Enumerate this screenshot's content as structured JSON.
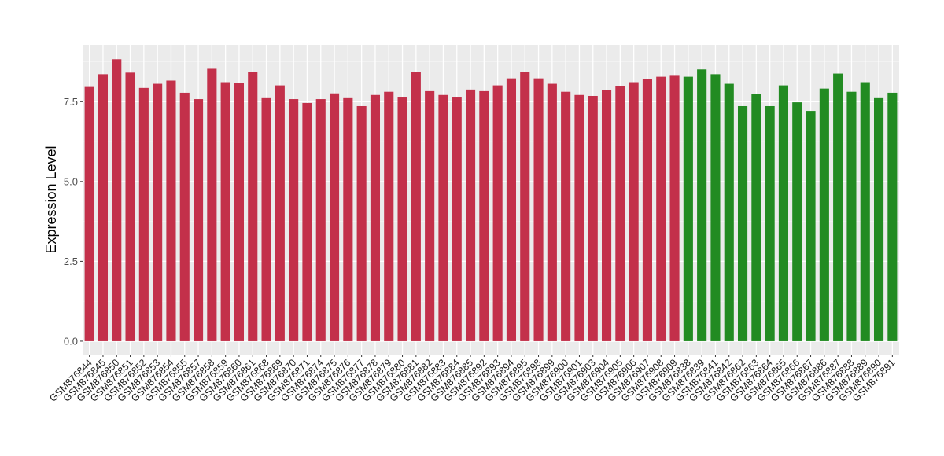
{
  "chart_data": {
    "type": "bar",
    "title": "",
    "xlabel": "",
    "ylabel": "Expression Level",
    "ylim": [
      -0.42,
      9.28
    ],
    "yticks": [
      0.0,
      2.5,
      5.0,
      7.5
    ],
    "ytick_labels": [
      "0.0",
      "2.5",
      "5.0",
      "7.5"
    ],
    "grid": true,
    "legend": "none",
    "panel_background": "#EBEBEB",
    "categories": [
      "GSM876844",
      "GSM876845",
      "GSM876850",
      "GSM876851",
      "GSM876852",
      "GSM876853",
      "GSM876854",
      "GSM876855",
      "GSM876857",
      "GSM876858",
      "GSM876859",
      "GSM876860",
      "GSM876861",
      "GSM876868",
      "GSM876869",
      "GSM876870",
      "GSM876871",
      "GSM876874",
      "GSM876875",
      "GSM876876",
      "GSM876877",
      "GSM876878",
      "GSM876879",
      "GSM876880",
      "GSM876881",
      "GSM876882",
      "GSM876883",
      "GSM876884",
      "GSM876885",
      "GSM876892",
      "GSM876893",
      "GSM876894",
      "GSM876895",
      "GSM876898",
      "GSM876899",
      "GSM876900",
      "GSM876901",
      "GSM876903",
      "GSM876904",
      "GSM876905",
      "GSM876906",
      "GSM876907",
      "GSM876908",
      "GSM876909",
      "GSM876838",
      "GSM876839",
      "GSM876841",
      "GSM876842",
      "GSM876862",
      "GSM876863",
      "GSM876864",
      "GSM876865",
      "GSM876866",
      "GSM876867",
      "GSM876886",
      "GSM876887",
      "GSM876888",
      "GSM876889",
      "GSM876890",
      "GSM876891"
    ],
    "values": [
      7.96,
      8.36,
      8.83,
      8.41,
      7.93,
      8.06,
      8.16,
      7.78,
      7.58,
      8.53,
      8.11,
      8.08,
      8.43,
      7.61,
      8.01,
      7.58,
      7.46,
      7.58,
      7.76,
      7.61,
      7.36,
      7.71,
      7.81,
      7.63,
      8.43,
      7.83,
      7.71,
      7.63,
      7.88,
      7.83,
      8.01,
      8.23,
      8.43,
      8.23,
      8.06,
      7.81,
      7.71,
      7.68,
      7.86,
      7.98,
      8.11,
      8.21,
      8.28,
      8.31,
      8.28,
      8.51,
      8.36,
      8.06,
      7.36,
      7.73,
      7.36,
      8.01,
      7.48,
      7.21,
      7.91,
      8.38,
      7.81,
      8.11,
      7.61,
      7.78
    ],
    "groups": [
      "red",
      "red",
      "red",
      "red",
      "red",
      "red",
      "red",
      "red",
      "red",
      "red",
      "red",
      "red",
      "red",
      "red",
      "red",
      "red",
      "red",
      "red",
      "red",
      "red",
      "red",
      "red",
      "red",
      "red",
      "red",
      "red",
      "red",
      "red",
      "red",
      "red",
      "red",
      "red",
      "red",
      "red",
      "red",
      "red",
      "red",
      "red",
      "red",
      "red",
      "red",
      "red",
      "red",
      "red",
      "green",
      "green",
      "green",
      "green",
      "green",
      "green",
      "green",
      "green",
      "green",
      "green",
      "green",
      "green",
      "green",
      "green",
      "green",
      "green"
    ],
    "colors": {
      "red": "#C3304A",
      "green": "#228B22"
    }
  }
}
